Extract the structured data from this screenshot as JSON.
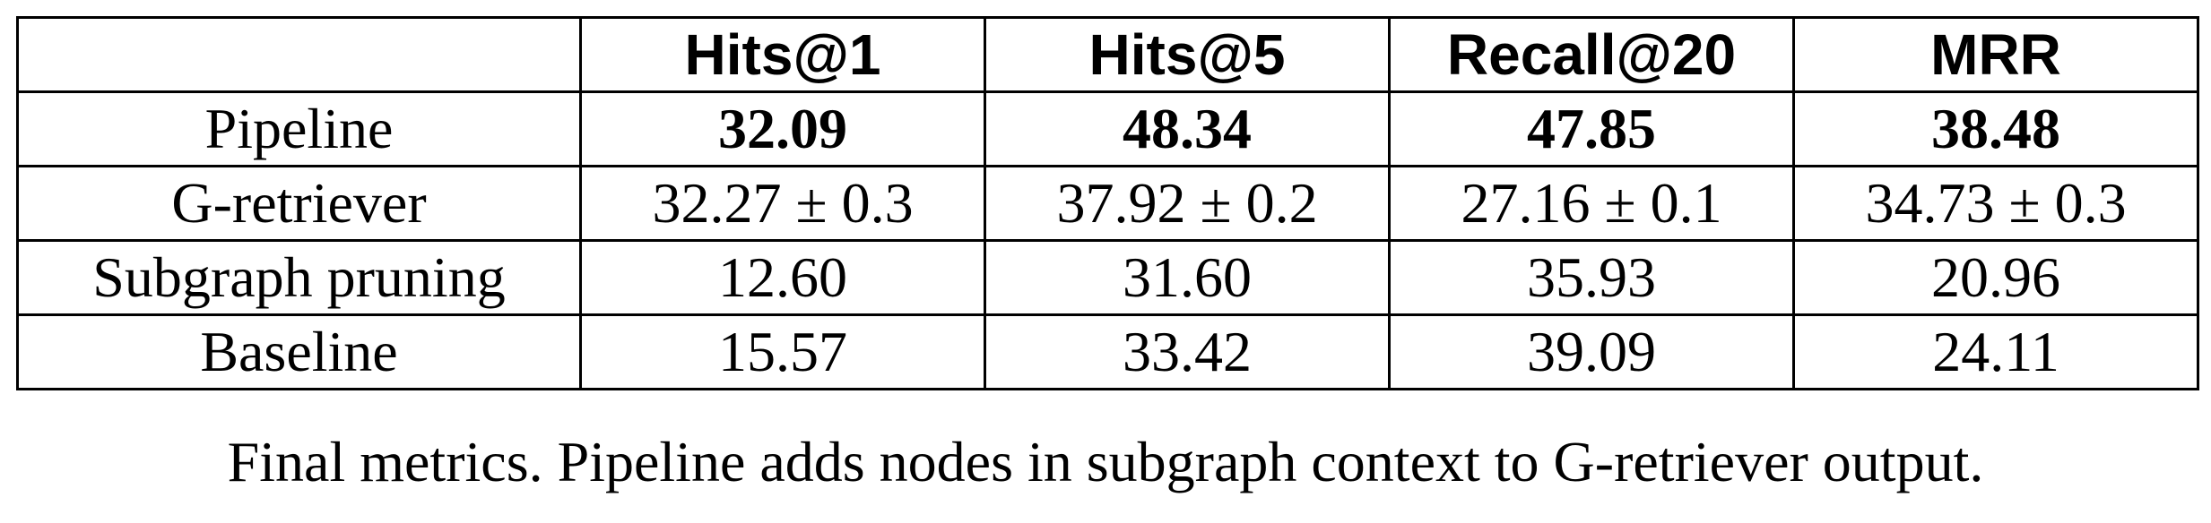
{
  "table": {
    "headers": [
      "",
      "Hits@1",
      "Hits@5",
      "Recall@20",
      "MRR"
    ],
    "rows": [
      {
        "label": "Pipeline",
        "values": [
          "32.09",
          "48.34",
          "47.85",
          "38.48"
        ],
        "bold": true
      },
      {
        "label": "G-retriever",
        "values": [
          "32.27 ± 0.3",
          "37.92 ± 0.2",
          "27.16 ± 0.1",
          "34.73 ± 0.3"
        ],
        "bold": false
      },
      {
        "label": "Subgraph pruning",
        "values": [
          "12.60",
          "31.60",
          "35.93",
          "20.96"
        ],
        "bold": false
      },
      {
        "label": "Baseline",
        "values": [
          "15.57",
          "33.42",
          "39.09",
          "24.11"
        ],
        "bold": false
      }
    ]
  },
  "caption": "Final metrics. Pipeline adds nodes in subgraph context to G-retriever output."
}
